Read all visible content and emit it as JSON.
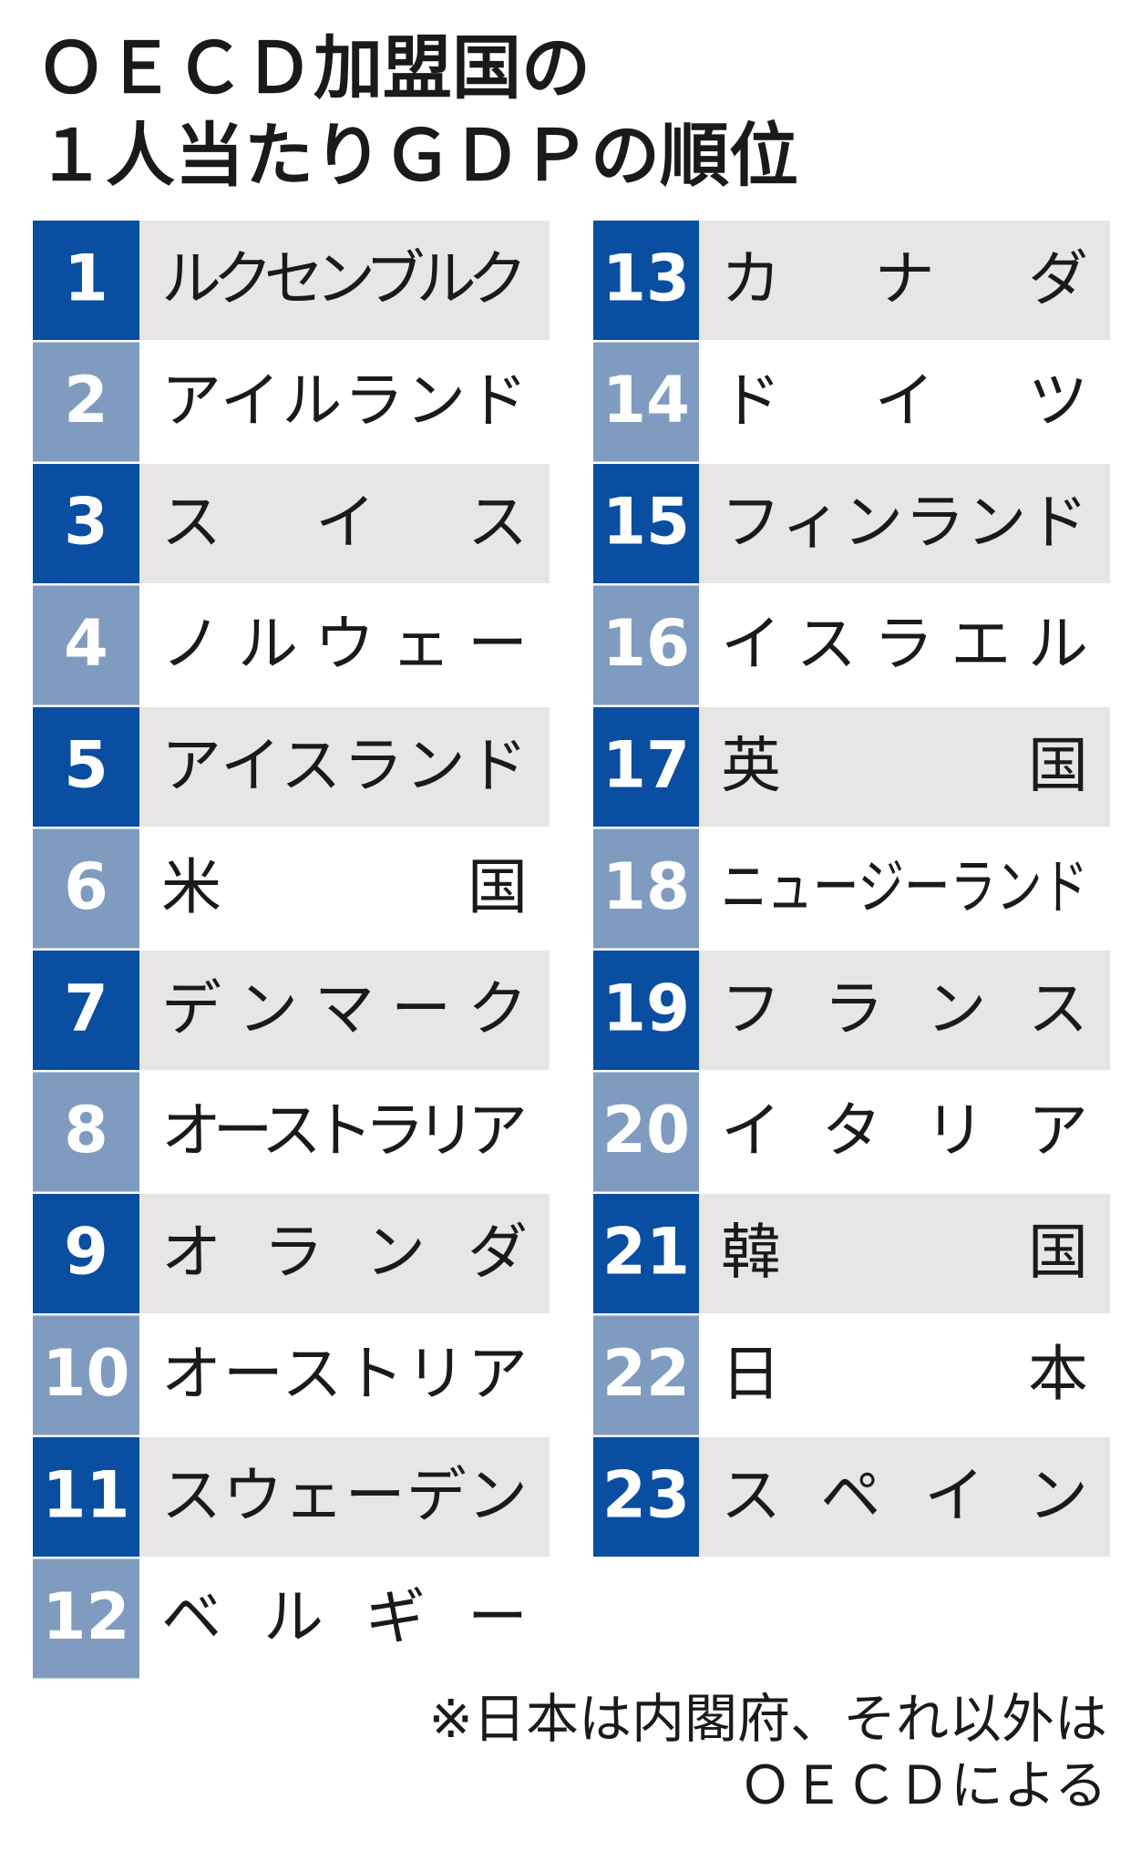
{
  "title": [
    "ＯＥＣＤ加盟国の",
    "１人当たりＧＤＰの順位"
  ],
  "rankings": [
    {
      "rank": 1,
      "name": "ルクセンブルク"
    },
    {
      "rank": 2,
      "name": "アイルランド"
    },
    {
      "rank": 3,
      "name": "スイス"
    },
    {
      "rank": 4,
      "name": "ノルウェー"
    },
    {
      "rank": 5,
      "name": "アイスランド"
    },
    {
      "rank": 6,
      "name": "米国"
    },
    {
      "rank": 7,
      "name": "デンマーク"
    },
    {
      "rank": 8,
      "name": "オーストラリア"
    },
    {
      "rank": 9,
      "name": "オランダ"
    },
    {
      "rank": 10,
      "name": "オーストリア"
    },
    {
      "rank": 11,
      "name": "スウェーデン"
    },
    {
      "rank": 12,
      "name": "ベルギー"
    },
    {
      "rank": 13,
      "name": "カナダ"
    },
    {
      "rank": 14,
      "name": "ドイツ"
    },
    {
      "rank": 15,
      "name": "フィンランド"
    },
    {
      "rank": 16,
      "name": "イスラエル"
    },
    {
      "rank": 17,
      "name": "英国"
    },
    {
      "rank": 18,
      "name": "ニュージーランド"
    },
    {
      "rank": 19,
      "name": "フランス"
    },
    {
      "rank": 20,
      "name": "イタリア"
    },
    {
      "rank": 21,
      "name": "韓国"
    },
    {
      "rank": 22,
      "name": "日本"
    },
    {
      "rank": 23,
      "name": "スペイン"
    }
  ],
  "footnote": [
    "※日本は内閣府、それ以外は",
    "ＯＥＣＤによる"
  ]
}
